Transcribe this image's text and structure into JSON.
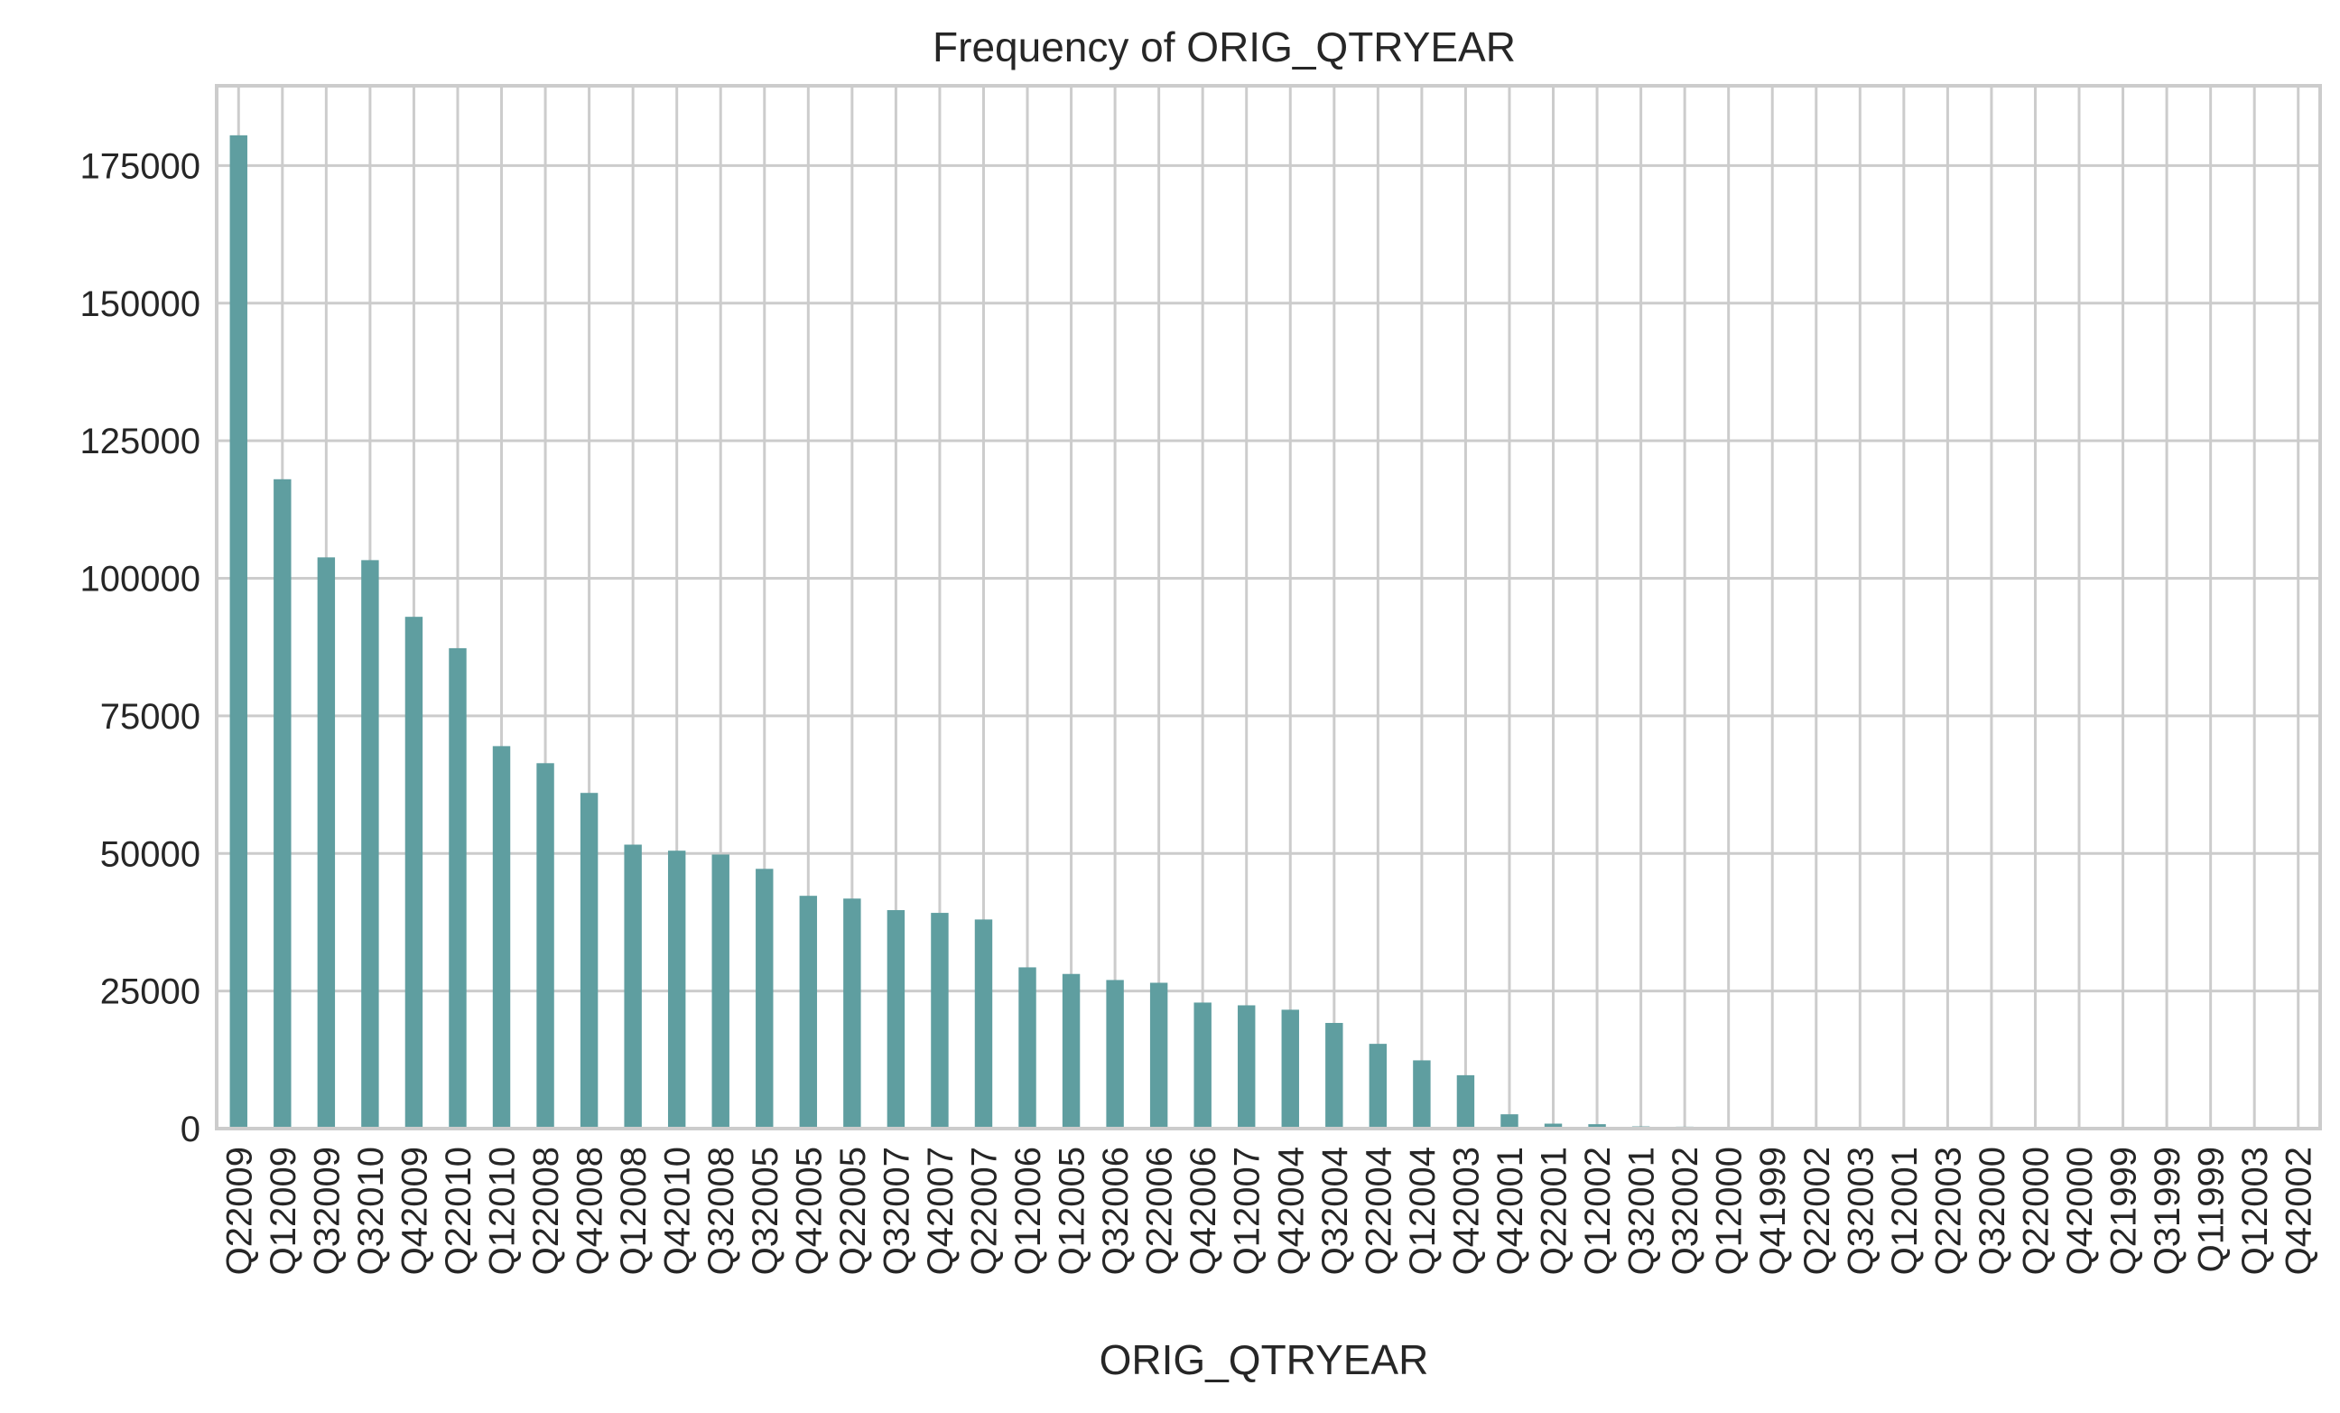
{
  "chart_data": {
    "type": "bar",
    "title": "Frequency of ORIG_QTRYEAR",
    "xlabel": "ORIG_QTRYEAR",
    "ylabel": "",
    "ylim": [
      0,
      189500
    ],
    "yticks": [
      0,
      25000,
      50000,
      75000,
      100000,
      125000,
      150000,
      175000
    ],
    "grid": true,
    "bar_color": "#5f9ea0",
    "categories": [
      "Q22009",
      "Q12009",
      "Q32009",
      "Q32010",
      "Q42009",
      "Q22010",
      "Q12010",
      "Q22008",
      "Q42008",
      "Q12008",
      "Q42010",
      "Q32008",
      "Q32005",
      "Q42005",
      "Q22005",
      "Q32007",
      "Q42007",
      "Q22007",
      "Q12006",
      "Q12005",
      "Q32006",
      "Q22006",
      "Q42006",
      "Q12007",
      "Q42004",
      "Q32004",
      "Q22004",
      "Q12004",
      "Q42003",
      "Q42001",
      "Q22001",
      "Q12002",
      "Q32001",
      "Q32002",
      "Q12000",
      "Q41999",
      "Q22002",
      "Q32003",
      "Q12001",
      "Q22003",
      "Q32000",
      "Q22000",
      "Q42000",
      "Q21999",
      "Q31999",
      "Q11999",
      "Q12003",
      "Q42002"
    ],
    "values": [
      180500,
      118000,
      103800,
      103300,
      93000,
      87300,
      69500,
      66400,
      61000,
      51600,
      50500,
      49800,
      47200,
      42300,
      41800,
      39700,
      39200,
      38000,
      29300,
      28100,
      27000,
      26500,
      22900,
      22400,
      21600,
      19200,
      15400,
      12400,
      9700,
      2600,
      900,
      800,
      400,
      350,
      300,
      280,
      250,
      220,
      200,
      180,
      150,
      130,
      110,
      90,
      70,
      60,
      50,
      40
    ]
  }
}
